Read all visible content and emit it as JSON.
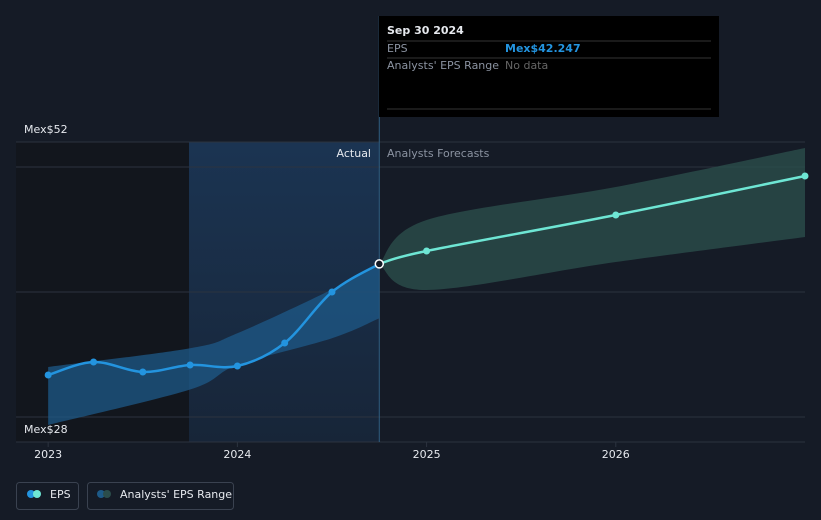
{
  "chart_data": {
    "type": "line",
    "xlim": [
      2022.83,
      2027
    ],
    "xticks": [
      2023,
      2024,
      2025,
      2026
    ],
    "ylim": [
      28,
      52
    ],
    "yticks": [
      {
        "value": 28,
        "label": "Mex$28"
      },
      {
        "value": 52,
        "label": "Mex$52"
      }
    ],
    "ygrid": [
      30,
      40,
      50
    ],
    "divider_x": 2024.75,
    "actual_label": "Actual",
    "forecast_label": "Analysts Forecasts",
    "series": [
      {
        "name": "EPS",
        "color": "#2394df",
        "forecast_color": "#6ee6d4",
        "x": [
          2023,
          2023.24,
          2023.5,
          2023.75,
          2024,
          2024.25,
          2024.5,
          2024.75,
          2025,
          2026,
          2027
        ],
        "values": [
          33.36,
          34.4,
          33.6,
          34.16,
          34.08,
          35.92,
          40,
          42.247,
          43.28,
          46.16,
          49.28
        ]
      }
    ],
    "range": {
      "name": "Analysts' EPS Range",
      "color": "#1d5a88",
      "forecast_color": "#2b4d4b",
      "actual": {
        "x": [
          2023,
          2023.75,
          2024,
          2024.5,
          2024.75
        ],
        "low": [
          29.36,
          32.2,
          34.16,
          36.3,
          37.9
        ],
        "high": [
          34,
          35.5,
          36.7,
          40.2,
          42.247
        ]
      },
      "forecast": {
        "x": [
          2024.75,
          2025,
          2026,
          2027
        ],
        "low": [
          42.247,
          40.16,
          42.4,
          44.4
        ],
        "high": [
          42.247,
          45.76,
          48.4,
          51.52
        ]
      }
    },
    "tooltip": {
      "date": "Sep 30 2024",
      "rows": [
        [
          "EPS",
          "Mex$42.247"
        ],
        [
          "Analysts' EPS Range",
          "No data"
        ]
      ]
    }
  }
}
